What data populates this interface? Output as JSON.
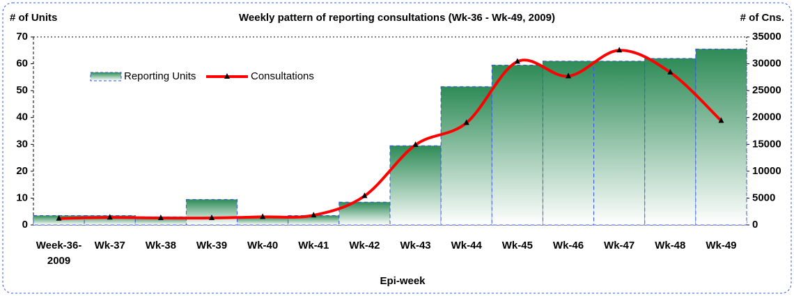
{
  "chart_data": {
    "type": "bar-line",
    "title": "Weekly pattern of reporting consultations (Wk-36 - Wk-49, 2009)",
    "y_label": "# of Units",
    "y2_label": "# of Cns.",
    "x_label": "Epi-week",
    "categories": [
      "Week-36-2009",
      "Wk-37",
      "Wk-38",
      "Wk-39",
      "Wk-40",
      "Wk-41",
      "Wk-42",
      "Wk-43",
      "Wk-44",
      "Wk-45",
      "Wk-46",
      "Wk-47",
      "Wk-48",
      "Wk-49"
    ],
    "series": [
      {
        "name": "Reporting Units",
        "type": "bar",
        "color": "#2e8b57",
        "values": [
          3.5,
          3.5,
          3,
          9.5,
          3,
          3.5,
          8.5,
          29.5,
          51.5,
          59.5,
          61,
          61,
          62,
          65.5
        ]
      },
      {
        "name": "Consultations",
        "type": "line",
        "axis": "y2",
        "color": "#ff0000",
        "values": [
          1200,
          1400,
          1300,
          1300,
          1500,
          1800,
          5400,
          14900,
          19000,
          30400,
          27700,
          32500,
          28400,
          19400
        ]
      }
    ],
    "ylim": [
      0,
      70
    ],
    "yticks": [
      0,
      10,
      20,
      30,
      40,
      50,
      60,
      70
    ],
    "y2lim": [
      0,
      35000
    ],
    "y2ticks": [
      0,
      5000,
      10000,
      15000,
      20000,
      25000,
      30000,
      35000
    ],
    "grid": false
  }
}
